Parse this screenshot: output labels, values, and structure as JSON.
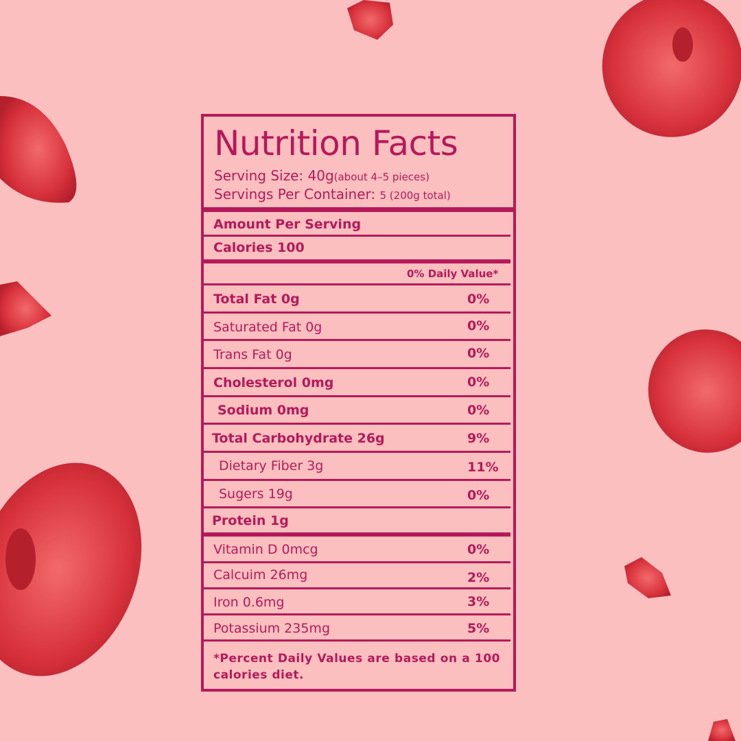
{
  "label": {
    "title": "Nutrition Facts",
    "serving_size": "Serving Size: 40g",
    "serving_note": "(about 4–5 pieces)",
    "servings_per_container": "Servings Per Container: ",
    "servings_note": "5 (200g total)",
    "amount_per_serving": "Amount Per Serving",
    "calories": "Calories  100",
    "daily_value_header": "0% Daily Value*",
    "rows": [
      {
        "name": "Total Fat 0g",
        "pct": "0%"
      },
      {
        "name": "Saturated Fat 0g",
        "pct": "0%"
      },
      {
        "name": "Trans Fat 0g",
        "pct": "0%"
      },
      {
        "name": "Cholesterol 0mg",
        "pct": "0%"
      },
      {
        "name": "Sodium 0mg",
        "pct": "0%"
      },
      {
        "name": "Total Carbohydrate 26g",
        "pct": "9%"
      },
      {
        "name": "Dietary Fiber 3g",
        "pct": "11%"
      },
      {
        "name": "Sugers 19g",
        "pct": "0%"
      },
      {
        "name": "Protein 1g",
        "pct": ""
      },
      {
        "name": "Vitamin D 0mcg",
        "pct": "0%"
      },
      {
        "name": "Calcuim 26mg",
        "pct": "2%"
      },
      {
        "name": "Iron 0.6mg",
        "pct": "3%"
      },
      {
        "name": "Potassium 235mg",
        "pct": "5%"
      }
    ],
    "footnote": "*Percent Daily Values are based on a 100 calories  diet."
  },
  "colors": {
    "accent": "#b5195a",
    "background": "#fbbfbf",
    "berry": "#d8323c"
  }
}
